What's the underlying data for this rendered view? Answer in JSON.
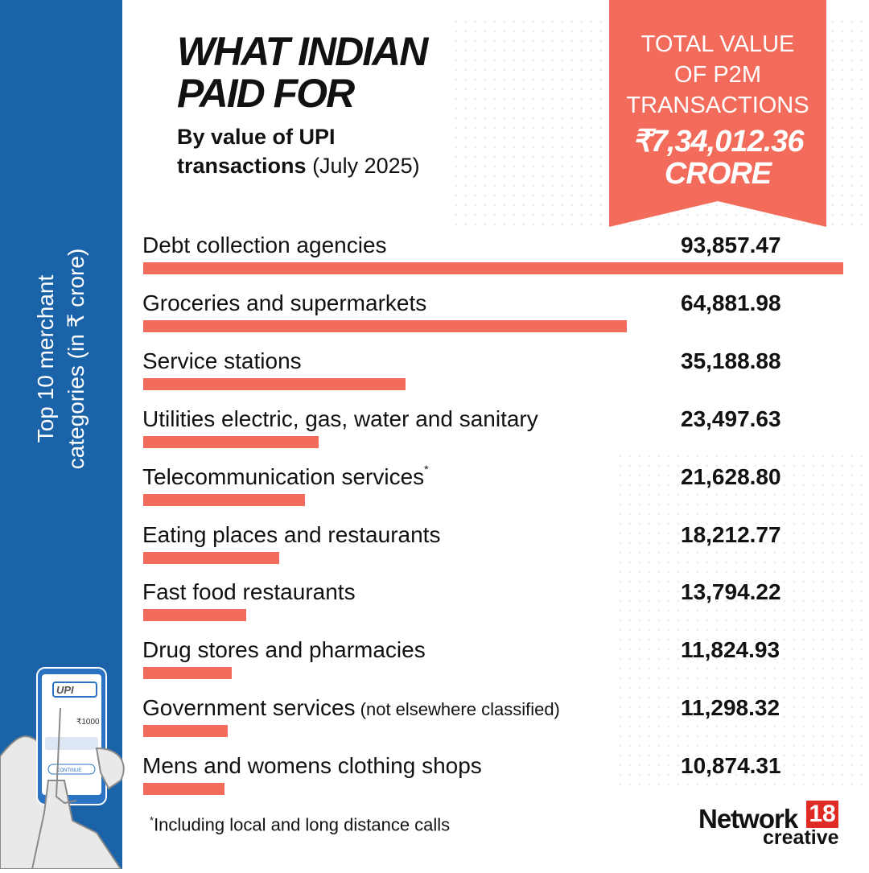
{
  "title": {
    "line1": "WHAT INDIAN",
    "line2": "PAID FOR"
  },
  "subtitle": {
    "bold": "By value of UPI",
    "bold2": "transactions",
    "rest": " (July 2025)"
  },
  "total": {
    "label_line1": "TOTAL VALUE",
    "label_line2": "OF P2M",
    "label_line3": "TRANSACTIONS",
    "value": "₹7,34,012.36",
    "unit": "CRORE"
  },
  "side_label": {
    "line1": "Top 10 merchant",
    "line2": "categories (in ₹ crore)"
  },
  "illustration": {
    "upi_logo": "UPI",
    "amount": "₹1000",
    "button": "CONTINUE"
  },
  "chart_data": {
    "type": "bar",
    "categories": [
      "Debt collection agencies",
      "Groceries and supermarkets",
      "Service stations",
      "Utilities electric, gas, water and sanitary",
      "Telecommunication services",
      "Eating places and restaurants",
      "Fast food restaurants",
      "Drug stores and pharmacies",
      "Government services",
      "Mens and womens clothing shops"
    ],
    "notes": [
      "",
      "",
      "",
      "",
      "*",
      "",
      "",
      "",
      " (not elsewhere classified)",
      ""
    ],
    "values": [
      93857.47,
      64881.98,
      35188.88,
      23497.63,
      21628.8,
      18212.77,
      13794.22,
      11824.93,
      11298.32,
      10874.31
    ],
    "value_labels": [
      "93,857.47",
      "64,881.98",
      "35,188.88",
      "23,497.63",
      "21,628.80",
      "18,212.77",
      "13,794.22",
      "11,824.93",
      "11,298.32",
      "10,874.31"
    ],
    "bar_color": "#f26b5b",
    "orientation": "horizontal"
  },
  "footnote": "Including local and long distance calls",
  "footnote_mark": "*",
  "logo": {
    "word": "Network",
    "number": "18",
    "sub": "creative"
  },
  "colors": {
    "sidebar": "#1b63a8",
    "accent": "#f26b5b",
    "logo_red": "#e02b25"
  }
}
